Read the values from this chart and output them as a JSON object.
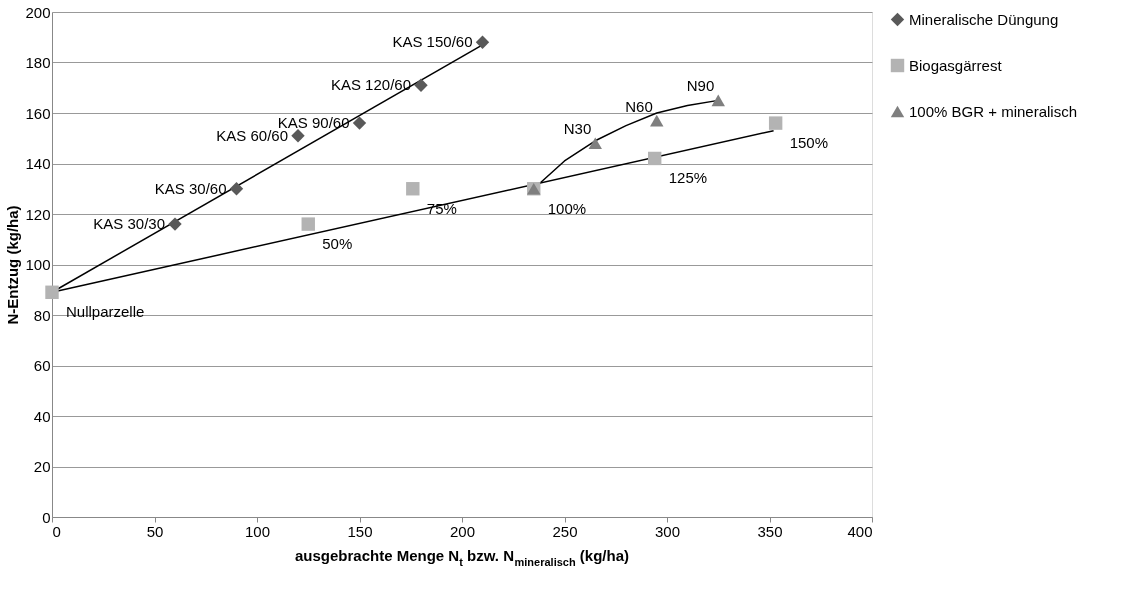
{
  "chart_data": {
    "type": "scatter",
    "xlabel": "ausgebrachte Menge N$_{t}$ bzw. N$_{mineralisch}$ (kg/ha)",
    "ylabel": "N-Entzug (kg/ha)",
    "xlim": [
      0,
      400
    ],
    "xticks": [
      0,
      50,
      100,
      150,
      200,
      250,
      300,
      350,
      400
    ],
    "ylim": [
      0,
      200
    ],
    "yticks": [
      0,
      20,
      40,
      60,
      80,
      100,
      120,
      140,
      160,
      180,
      200
    ],
    "grid": "y",
    "legend": "right",
    "series": [
      {
        "name": "Mineralische Düngung",
        "color": "#595959",
        "marker": "diamond",
        "x": [
          60,
          90,
          120,
          150,
          180,
          210
        ],
        "values": [
          116,
          130,
          151,
          156,
          171,
          188
        ]
      },
      {
        "name": "Biogasgärrest",
        "color": "#b3b3b3",
        "marker": "square",
        "x": [
          0,
          125,
          176,
          235,
          294,
          353
        ],
        "values": [
          89,
          116,
          130,
          130,
          142,
          156
        ]
      },
      {
        "name": "100% BGR + mineralisch",
        "color": "#7f7f7f",
        "marker": "triangle",
        "x": [
          235,
          265,
          295,
          325
        ],
        "values": [
          130,
          148,
          157,
          165
        ]
      },
      {
        "type": "line",
        "color": "#000000",
        "x": [
          0,
          210
        ],
        "values": [
          89,
          187
        ]
      },
      {
        "type": "line",
        "color": "#000000",
        "x": [
          0,
          352
        ],
        "values": [
          89,
          153
        ]
      },
      {
        "type": "line",
        "color": "#000000",
        "x": [
          235,
          250,
          265,
          280,
          295,
          310,
          325
        ],
        "values": [
          130,
          141,
          149,
          155,
          160,
          163,
          165
        ]
      }
    ],
    "annotations": [
      {
        "text": "KAS 30/30",
        "x": 60,
        "y": 116
      },
      {
        "text": "KAS 30/60",
        "x": 90,
        "y": 130
      },
      {
        "text": "KAS 60/60",
        "x": 120,
        "y": 151
      },
      {
        "text": "KAS 90/60",
        "x": 150,
        "y": 156
      },
      {
        "text": "KAS 120/60",
        "x": 180,
        "y": 171
      },
      {
        "text": "KAS 150/60",
        "x": 210,
        "y": 188
      },
      {
        "text": "Nullparzelle",
        "x": 0,
        "y": 89
      },
      {
        "text": "50%",
        "x": 125,
        "y": 116
      },
      {
        "text": "75%",
        "x": 176,
        "y": 130
      },
      {
        "text": "100%",
        "x": 235,
        "y": 130
      },
      {
        "text": "125%",
        "x": 294,
        "y": 142
      },
      {
        "text": "150%",
        "x": 353,
        "y": 156
      },
      {
        "text": "N30",
        "x": 265,
        "y": 148
      },
      {
        "text": "N60",
        "x": 295,
        "y": 157
      },
      {
        "text": "N90",
        "x": 325,
        "y": 165
      }
    ]
  }
}
